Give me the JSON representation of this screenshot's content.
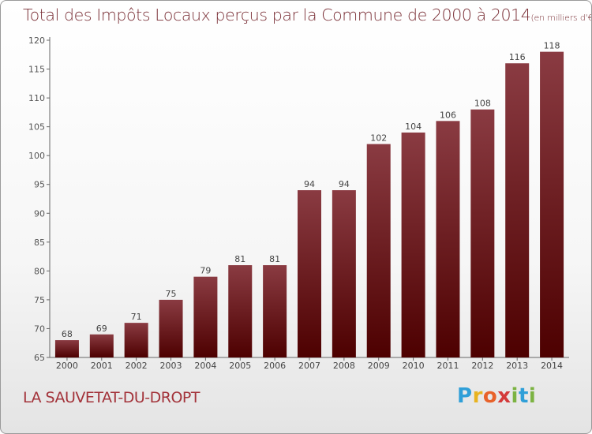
{
  "title": {
    "main": "Total des Impôts Locaux perçus par la Commune de 2000 à 2014",
    "unit": "(en milliers d'€)"
  },
  "commune": "LA SAUVETAT-DU-DROPT",
  "logo": {
    "text": "Proxiti"
  },
  "colors": {
    "bar_top": "#8a3b42",
    "bar_bottom": "#4d0000",
    "axis": "#666666",
    "title": "#7a2f36"
  },
  "chart_data": {
    "type": "bar",
    "categories": [
      "2000",
      "2001",
      "2002",
      "2003",
      "2004",
      "2005",
      "2006",
      "2007",
      "2008",
      "2009",
      "2010",
      "2011",
      "2012",
      "2013",
      "2014"
    ],
    "values": [
      68,
      69,
      71,
      75,
      79,
      81,
      81,
      94,
      94,
      102,
      104,
      106,
      108,
      116,
      118
    ],
    "ylim": [
      65,
      120
    ],
    "yticks": [
      65,
      70,
      75,
      80,
      85,
      90,
      95,
      100,
      105,
      110,
      115,
      120
    ],
    "xlabel": "",
    "ylabel": "",
    "grid": false,
    "data_labels": true
  }
}
